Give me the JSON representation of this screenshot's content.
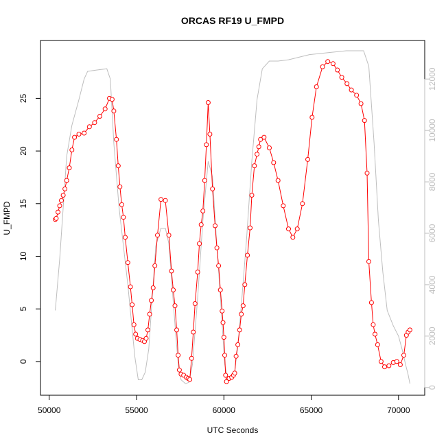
{
  "chart_data": {
    "type": "line",
    "title": "ORCAS RF19 U_FMPD",
    "xlabel": "UTC Seconds",
    "ylabel": "U_FMPD",
    "xlim": [
      49500,
      71500
    ],
    "ylim": [
      -3.2,
      30.5
    ],
    "y2lim": [
      -300,
      13500
    ],
    "grid": false,
    "xticks": [
      {
        "value": 50000,
        "label": "50000"
      },
      {
        "value": 55000,
        "label": "55000"
      },
      {
        "value": 60000,
        "label": "60000"
      },
      {
        "value": 65000,
        "label": "65000"
      },
      {
        "value": 70000,
        "label": "70000"
      }
    ],
    "yticks": [
      {
        "value": 0,
        "label": "0"
      },
      {
        "value": 5,
        "label": "5"
      },
      {
        "value": 10,
        "label": "10"
      },
      {
        "value": 15,
        "label": "15"
      },
      {
        "value": 20,
        "label": "20"
      },
      {
        "value": 25,
        "label": "25"
      }
    ],
    "y2ticks": [
      {
        "value": 0,
        "label": "0"
      },
      {
        "value": 2000,
        "label": "2000"
      },
      {
        "value": 4000,
        "label": "4000"
      },
      {
        "value": 6000,
        "label": "6000"
      },
      {
        "value": 8000,
        "label": "8000"
      },
      {
        "value": 10000,
        "label": "10000"
      },
      {
        "value": 12000,
        "label": "12000"
      }
    ],
    "colors": {
      "primary": "#ff0000",
      "secondary": "#bebebe",
      "axis": "#000000"
    },
    "series": [
      {
        "role": "primary",
        "axis": "left",
        "markers": "open-circle",
        "points": [
          [
            50350,
            13.5
          ],
          [
            50400,
            13.6
          ],
          [
            50500,
            14.2
          ],
          [
            50600,
            14.8
          ],
          [
            50700,
            15.3
          ],
          [
            50800,
            15.8
          ],
          [
            50900,
            16.4
          ],
          [
            51000,
            17.2
          ],
          [
            51150,
            18.4
          ],
          [
            51300,
            20.1
          ],
          [
            51450,
            21.3
          ],
          [
            51700,
            21.6
          ],
          [
            52000,
            21.7
          ],
          [
            52300,
            22.3
          ],
          [
            52600,
            22.7
          ],
          [
            52900,
            23.3
          ],
          [
            53200,
            24.0
          ],
          [
            53450,
            25.0
          ],
          [
            53600,
            24.9
          ],
          [
            53700,
            23.8
          ],
          [
            53850,
            21.1
          ],
          [
            53950,
            18.6
          ],
          [
            54050,
            16.6
          ],
          [
            54150,
            14.9
          ],
          [
            54250,
            13.7
          ],
          [
            54350,
            11.8
          ],
          [
            54500,
            9.4
          ],
          [
            54650,
            7.1
          ],
          [
            54750,
            5.4
          ],
          [
            54850,
            3.5
          ],
          [
            54950,
            2.6
          ],
          [
            55050,
            2.2
          ],
          [
            55200,
            2.1
          ],
          [
            55350,
            2.0
          ],
          [
            55450,
            1.9
          ],
          [
            55550,
            2.2
          ],
          [
            55650,
            3.0
          ],
          [
            55750,
            4.5
          ],
          [
            55850,
            5.8
          ],
          [
            55950,
            7.0
          ],
          [
            56050,
            9.1
          ],
          [
            56200,
            12.0
          ],
          [
            56400,
            15.4
          ],
          [
            56650,
            15.3
          ],
          [
            56850,
            12.0
          ],
          [
            57000,
            8.6
          ],
          [
            57100,
            6.8
          ],
          [
            57200,
            5.3
          ],
          [
            57300,
            3.0
          ],
          [
            57380,
            0.6
          ],
          [
            57450,
            -0.8
          ],
          [
            57550,
            -1.2
          ],
          [
            57700,
            -1.3
          ],
          [
            57850,
            -1.5
          ],
          [
            57950,
            -1.6
          ],
          [
            58050,
            -1.7
          ],
          [
            58150,
            0.3
          ],
          [
            58250,
            2.8
          ],
          [
            58350,
            5.5
          ],
          [
            58500,
            8.5
          ],
          [
            58600,
            11.2
          ],
          [
            58700,
            13.0
          ],
          [
            58800,
            14.3
          ],
          [
            58900,
            17.2
          ],
          [
            59000,
            20.6
          ],
          [
            59100,
            24.6
          ],
          [
            59200,
            21.6
          ],
          [
            59350,
            16.4
          ],
          [
            59500,
            12.9
          ],
          [
            59600,
            10.8
          ],
          [
            59700,
            9.1
          ],
          [
            59800,
            6.8
          ],
          [
            59900,
            4.8
          ],
          [
            59950,
            3.7
          ],
          [
            60000,
            2.3
          ],
          [
            60050,
            0.6
          ],
          [
            60100,
            -1.3
          ],
          [
            60150,
            -1.9
          ],
          [
            60300,
            -1.6
          ],
          [
            60450,
            -1.5
          ],
          [
            60550,
            -1.3
          ],
          [
            60620,
            -1.1
          ],
          [
            60700,
            0.5
          ],
          [
            60800,
            1.6
          ],
          [
            60900,
            3.0
          ],
          [
            61000,
            4.5
          ],
          [
            61100,
            5.3
          ],
          [
            61200,
            7.3
          ],
          [
            61350,
            10.1
          ],
          [
            61500,
            12.7
          ],
          [
            61600,
            15.8
          ],
          [
            61750,
            18.6
          ],
          [
            61900,
            19.7
          ],
          [
            62000,
            20.4
          ],
          [
            62100,
            21.1
          ],
          [
            62300,
            21.3
          ],
          [
            62600,
            20.3
          ],
          [
            62850,
            18.9
          ],
          [
            63100,
            17.2
          ],
          [
            63400,
            14.8
          ],
          [
            63700,
            12.6
          ],
          [
            63950,
            11.8
          ],
          [
            64200,
            12.6
          ],
          [
            64500,
            15.0
          ],
          [
            64800,
            19.2
          ],
          [
            65050,
            23.2
          ],
          [
            65300,
            26.1
          ],
          [
            65650,
            28.0
          ],
          [
            65950,
            28.5
          ],
          [
            66250,
            28.3
          ],
          [
            66500,
            27.7
          ],
          [
            66750,
            27.0
          ],
          [
            67050,
            26.4
          ],
          [
            67300,
            25.8
          ],
          [
            67600,
            25.3
          ],
          [
            67850,
            24.5
          ],
          [
            68050,
            22.9
          ],
          [
            68200,
            17.9
          ],
          [
            68300,
            9.5
          ],
          [
            68450,
            5.6
          ],
          [
            68550,
            3.5
          ],
          [
            68650,
            2.6
          ],
          [
            68800,
            1.6
          ],
          [
            69000,
            0.0
          ],
          [
            69200,
            -0.5
          ],
          [
            69450,
            -0.4
          ],
          [
            69700,
            -0.1
          ],
          [
            69900,
            0.0
          ],
          [
            70100,
            -0.3
          ],
          [
            70300,
            0.6
          ],
          [
            70450,
            2.5
          ],
          [
            70550,
            2.8
          ],
          [
            70650,
            3.0
          ]
        ]
      },
      {
        "role": "secondary",
        "axis": "right",
        "markers": "none",
        "points": [
          [
            50350,
            3000
          ],
          [
            50600,
            5000
          ],
          [
            51000,
            9000
          ],
          [
            51300,
            10200
          ],
          [
            51700,
            11200
          ],
          [
            52000,
            12000
          ],
          [
            52200,
            12300
          ],
          [
            52700,
            12350
          ],
          [
            53300,
            12400
          ],
          [
            53500,
            12000
          ],
          [
            53700,
            9500
          ],
          [
            54000,
            7000
          ],
          [
            54500,
            4000
          ],
          [
            54900,
            1200
          ],
          [
            55100,
            300
          ],
          [
            55300,
            300
          ],
          [
            55500,
            600
          ],
          [
            55700,
            1500
          ],
          [
            55900,
            3500
          ],
          [
            56100,
            5500
          ],
          [
            56400,
            6200
          ],
          [
            56650,
            6200
          ],
          [
            56850,
            5600
          ],
          [
            57050,
            3800
          ],
          [
            57250,
            2000
          ],
          [
            57400,
            800
          ],
          [
            57550,
            300
          ],
          [
            57800,
            150
          ],
          [
            58000,
            200
          ],
          [
            58200,
            900
          ],
          [
            58500,
            3500
          ],
          [
            58800,
            6500
          ],
          [
            59100,
            8800
          ],
          [
            59350,
            8200
          ],
          [
            59600,
            5500
          ],
          [
            59850,
            3000
          ],
          [
            60050,
            900
          ],
          [
            60200,
            400
          ],
          [
            60400,
            350
          ],
          [
            60600,
            500
          ],
          [
            60800,
            1600
          ],
          [
            61000,
            3200
          ],
          [
            61300,
            5800
          ],
          [
            61600,
            8800
          ],
          [
            61900,
            11200
          ],
          [
            62200,
            12400
          ],
          [
            62600,
            12700
          ],
          [
            63100,
            12700
          ],
          [
            63700,
            12750
          ],
          [
            64300,
            12850
          ],
          [
            64900,
            12950
          ],
          [
            65600,
            13000
          ],
          [
            66300,
            13050
          ],
          [
            67000,
            13100
          ],
          [
            67700,
            13100
          ],
          [
            68000,
            13100
          ],
          [
            68300,
            12500
          ],
          [
            68600,
            9500
          ],
          [
            68850,
            6500
          ],
          [
            69100,
            4500
          ],
          [
            69350,
            3000
          ],
          [
            69700,
            2400
          ],
          [
            70000,
            2000
          ],
          [
            70200,
            1500
          ],
          [
            70400,
            900
          ],
          [
            70550,
            500
          ],
          [
            70650,
            150
          ]
        ]
      }
    ]
  }
}
